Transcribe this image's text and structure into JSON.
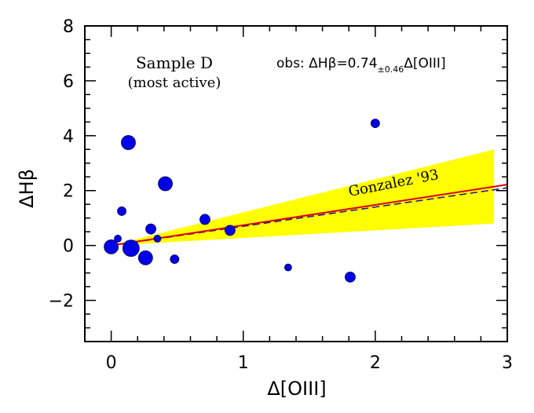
{
  "chart_data": {
    "type": "scatter",
    "xlabel": "Δ[OIII]",
    "ylabel": "ΔHβ",
    "xlim": [
      -0.2,
      3.0
    ],
    "ylim": [
      -3.5,
      8.0
    ],
    "xticks": [
      0,
      1,
      2,
      3
    ],
    "yticks": [
      -2,
      0,
      2,
      4,
      6,
      8
    ],
    "xtick_labels": [
      "0",
      "1",
      "2",
      "3"
    ],
    "ytick_labels": [
      "−2",
      "0",
      "2",
      "4",
      "6",
      "8"
    ],
    "annotations": {
      "sample_line1": "Sample D",
      "sample_line2": "(most active)",
      "obs_prefix": "obs:  ΔHβ=0.74",
      "obs_err": "±0.46",
      "obs_suffix": "Δ[OIII]",
      "gonzalez": "Gonzalez '93"
    },
    "points": [
      {
        "x": 0.0,
        "y": -0.05,
        "size": "large"
      },
      {
        "x": 0.05,
        "y": 0.25,
        "size": "tiny"
      },
      {
        "x": 0.08,
        "y": 1.25,
        "size": "small"
      },
      {
        "x": 0.13,
        "y": 3.75,
        "size": "large"
      },
      {
        "x": 0.15,
        "y": -0.1,
        "size": "xlarge"
      },
      {
        "x": 0.26,
        "y": -0.45,
        "size": "large"
      },
      {
        "x": 0.3,
        "y": 0.6,
        "size": "medium"
      },
      {
        "x": 0.35,
        "y": 0.25,
        "size": "tiny"
      },
      {
        "x": 0.41,
        "y": 2.25,
        "size": "large"
      },
      {
        "x": 0.48,
        "y": -0.5,
        "size": "small"
      },
      {
        "x": 0.71,
        "y": 0.95,
        "size": "medium"
      },
      {
        "x": 0.9,
        "y": 0.55,
        "size": "medium"
      },
      {
        "x": 1.34,
        "y": -0.8,
        "size": "tiny"
      },
      {
        "x": 1.81,
        "y": -1.15,
        "size": "medium"
      },
      {
        "x": 2.0,
        "y": 4.45,
        "size": "small"
      }
    ],
    "fit_line": {
      "slope": 0.74,
      "intercept": 0.0,
      "color": "#dd0000"
    },
    "uncertainty_band": {
      "x_range": [
        0.0,
        2.9
      ],
      "y_at_max": [
        0.8,
        3.5
      ],
      "color": "#ffff00"
    },
    "reference_line": {
      "slope": 0.7,
      "intercept": 0.0,
      "style": "dashed",
      "color": "#1e1e8c"
    },
    "point_color": "#0000e6"
  }
}
